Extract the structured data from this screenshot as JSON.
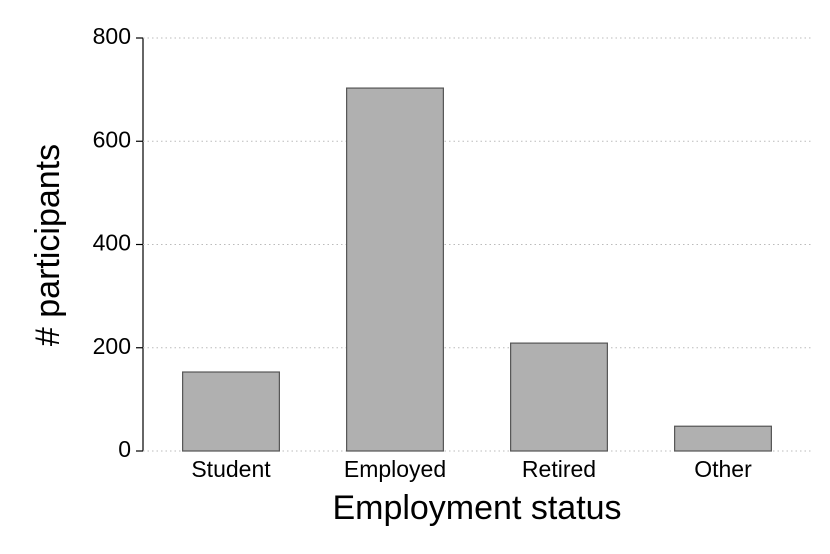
{
  "chart_data": {
    "type": "bar",
    "x_label": "Employment status",
    "y_label": "# participants",
    "categories": [
      "Student",
      "Employed",
      "Retired",
      "Other"
    ],
    "values": [
      153,
      703,
      209,
      48
    ],
    "color": "#b0b0b0",
    "ylim": [
      0,
      800
    ],
    "yticks": [
      0,
      200,
      400,
      600,
      800
    ],
    "grid": true
  }
}
